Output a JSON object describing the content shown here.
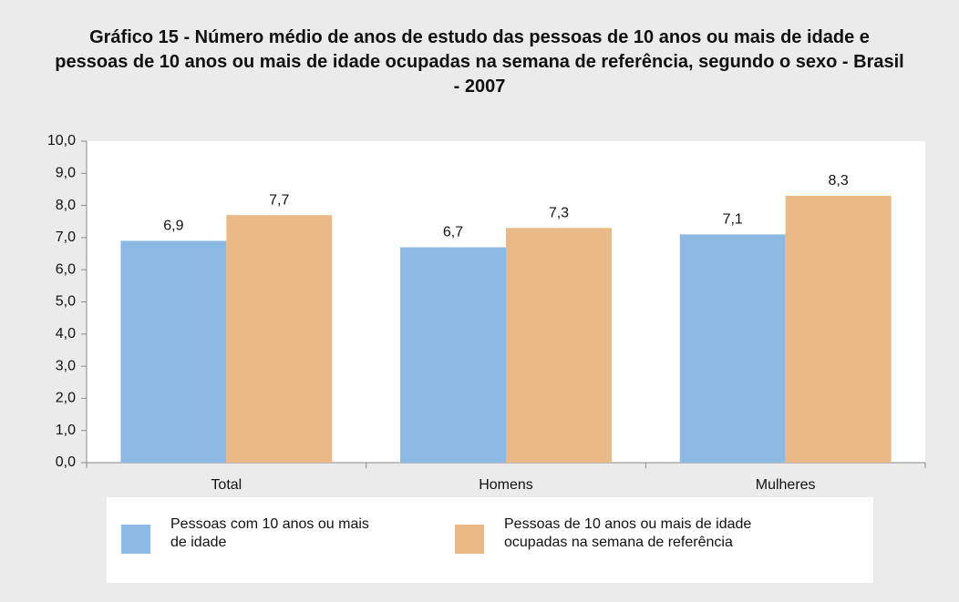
{
  "chart_data": {
    "type": "bar",
    "title": "Gráfico 15 - Número médio de anos de estudo das pessoas de 10 anos ou mais de idade e pessoas de 10 anos ou mais de idade ocupadas na semana de referência, segundo o sexo - Brasil - 2007",
    "categories": [
      "Total",
      "Homens",
      "Mulheres"
    ],
    "series": [
      {
        "name": "Pessoas com 10 anos ou mais de idade",
        "color": "#8dbae4",
        "values": [
          6.9,
          6.7,
          7.1
        ],
        "value_labels": [
          "6,9",
          "6,7",
          "7,1"
        ]
      },
      {
        "name": "Pessoas de 10 anos ou mais de idade ocupadas na semana de referência",
        "color": "#ebb985",
        "values": [
          7.7,
          7.3,
          8.3
        ],
        "value_labels": [
          "7,7",
          "7,3",
          "8,3"
        ]
      }
    ],
    "ylim": [
      0,
      10
    ],
    "yticks": [
      {
        "value": 0,
        "label": "0,0"
      },
      {
        "value": 1,
        "label": "1,0"
      },
      {
        "value": 2,
        "label": "2,0"
      },
      {
        "value": 3,
        "label": "3,0"
      },
      {
        "value": 4,
        "label": "4,0"
      },
      {
        "value": 5,
        "label": "5,0"
      },
      {
        "value": 6,
        "label": "6,0"
      },
      {
        "value": 7,
        "label": "7,0"
      },
      {
        "value": 8,
        "label": "8,0"
      },
      {
        "value": 9,
        "label": "9,0"
      },
      {
        "value": 10,
        "label": "10,0"
      }
    ],
    "grid": false
  }
}
